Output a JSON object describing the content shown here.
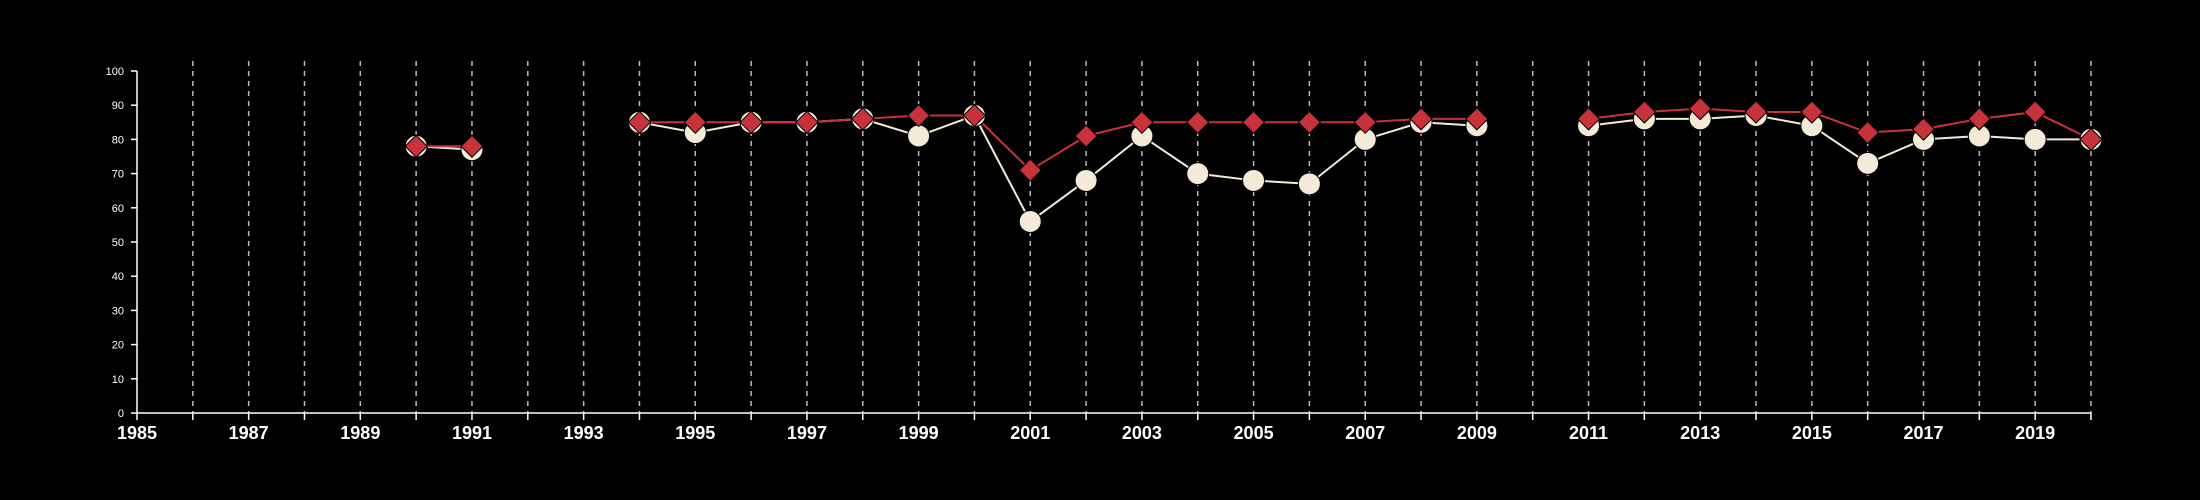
{
  "chart_data": {
    "type": "line",
    "title": "",
    "xlabel": "",
    "ylabel": "",
    "xlim": [
      1985,
      2020
    ],
    "ylim": [
      0,
      100
    ],
    "x_tick_labels": [
      "1985",
      "1987",
      "1989",
      "1991",
      "1993",
      "1995",
      "1997",
      "1999",
      "2001",
      "2003",
      "2005",
      "2007",
      "2009",
      "2011",
      "2013",
      "2015",
      "2017",
      "2019"
    ],
    "y_tick_labels": [
      "0",
      "10",
      "20",
      "30",
      "40",
      "50",
      "60",
      "70",
      "80",
      "90",
      "100"
    ],
    "grid": "vertical dashed lines at each year",
    "colors": {
      "background": "#000000",
      "axis": "#ffffff",
      "grid": "#bbbbbb"
    },
    "series": [
      {
        "marker": "circle",
        "color": "#f3ead8",
        "points": [
          {
            "x": 1990,
            "y": 78
          },
          {
            "x": 1991,
            "y": 77
          },
          {
            "x": 1994,
            "y": 85
          },
          {
            "x": 1995,
            "y": 82
          },
          {
            "x": 1996,
            "y": 85
          },
          {
            "x": 1997,
            "y": 85
          },
          {
            "x": 1998,
            "y": 86
          },
          {
            "x": 1999,
            "y": 81
          },
          {
            "x": 2000,
            "y": 87
          },
          {
            "x": 2001,
            "y": 56
          },
          {
            "x": 2002,
            "y": 68
          },
          {
            "x": 2003,
            "y": 81
          },
          {
            "x": 2004,
            "y": 70
          },
          {
            "x": 2005,
            "y": 68
          },
          {
            "x": 2006,
            "y": 67
          },
          {
            "x": 2007,
            "y": 80
          },
          {
            "x": 2008,
            "y": 85
          },
          {
            "x": 2009,
            "y": 84
          },
          {
            "x": 2011,
            "y": 84
          },
          {
            "x": 2012,
            "y": 86
          },
          {
            "x": 2013,
            "y": 86
          },
          {
            "x": 2014,
            "y": 87
          },
          {
            "x": 2015,
            "y": 84
          },
          {
            "x": 2016,
            "y": 73
          },
          {
            "x": 2017,
            "y": 80
          },
          {
            "x": 2018,
            "y": 81
          },
          {
            "x": 2019,
            "y": 80
          },
          {
            "x": 2020,
            "y": 80
          }
        ]
      },
      {
        "marker": "diamond",
        "color": "#c8323a",
        "points": [
          {
            "x": 1990,
            "y": 78
          },
          {
            "x": 1991,
            "y": 78
          },
          {
            "x": 1994,
            "y": 85
          },
          {
            "x": 1995,
            "y": 85
          },
          {
            "x": 1996,
            "y": 85
          },
          {
            "x": 1997,
            "y": 85
          },
          {
            "x": 1998,
            "y": 86
          },
          {
            "x": 1999,
            "y": 87
          },
          {
            "x": 2000,
            "y": 87
          },
          {
            "x": 2001,
            "y": 71
          },
          {
            "x": 2002,
            "y": 81
          },
          {
            "x": 2003,
            "y": 85
          },
          {
            "x": 2004,
            "y": 85
          },
          {
            "x": 2005,
            "y": 85
          },
          {
            "x": 2006,
            "y": 85
          },
          {
            "x": 2007,
            "y": 85
          },
          {
            "x": 2008,
            "y": 86
          },
          {
            "x": 2009,
            "y": 86
          },
          {
            "x": 2011,
            "y": 86
          },
          {
            "x": 2012,
            "y": 88
          },
          {
            "x": 2013,
            "y": 89
          },
          {
            "x": 2014,
            "y": 88
          },
          {
            "x": 2015,
            "y": 88
          },
          {
            "x": 2016,
            "y": 82
          },
          {
            "x": 2017,
            "y": 83
          },
          {
            "x": 2018,
            "y": 86
          },
          {
            "x": 2019,
            "y": 88
          },
          {
            "x": 2020,
            "y": 80
          }
        ]
      }
    ]
  }
}
